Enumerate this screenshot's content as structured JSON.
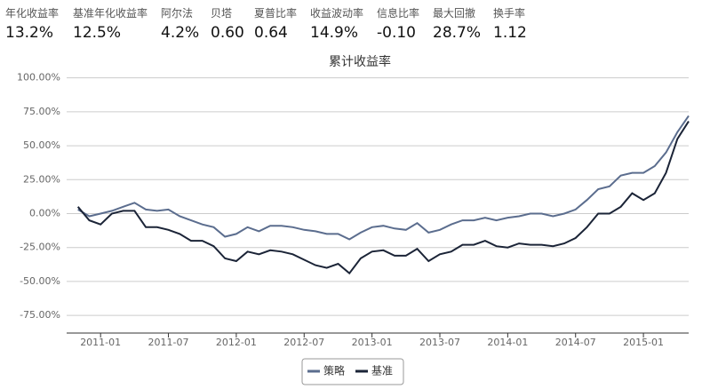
{
  "stats": [
    {
      "label": "年化收益率",
      "value": "13.2%"
    },
    {
      "label": "基准年化收益率",
      "value": "12.5%"
    },
    {
      "label": "阿尔法",
      "value": "4.2%"
    },
    {
      "label": "贝塔",
      "value": "0.60"
    },
    {
      "label": "夏普比率",
      "value": "0.64"
    },
    {
      "label": "收益波动率",
      "value": "14.9%"
    },
    {
      "label": "信息比率",
      "value": "-0.10"
    },
    {
      "label": "最大回撤",
      "value": "28.7%"
    },
    {
      "label": "换手率",
      "value": "1.12"
    }
  ],
  "chart_data": {
    "type": "line",
    "title": "累计收益率",
    "x": [
      "2010-11",
      "2010-12",
      "2011-01",
      "2011-02",
      "2011-03",
      "2011-04",
      "2011-05",
      "2011-06",
      "2011-07",
      "2011-08",
      "2011-09",
      "2011-10",
      "2011-11",
      "2011-12",
      "2012-01",
      "2012-02",
      "2012-03",
      "2012-04",
      "2012-05",
      "2012-06",
      "2012-07",
      "2012-08",
      "2012-09",
      "2012-10",
      "2012-11",
      "2012-12",
      "2013-01",
      "2013-02",
      "2013-03",
      "2013-04",
      "2013-05",
      "2013-06",
      "2013-07",
      "2013-08",
      "2013-09",
      "2013-10",
      "2013-11",
      "2013-12",
      "2014-01",
      "2014-02",
      "2014-03",
      "2014-04",
      "2014-05",
      "2014-06",
      "2014-07",
      "2014-08",
      "2014-09",
      "2014-10",
      "2014-11",
      "2014-12",
      "2015-01",
      "2015-02",
      "2015-03",
      "2015-04",
      "2015-05"
    ],
    "series": [
      {
        "name": "策略",
        "color": "#5b6d8e",
        "values": [
          3,
          -2,
          0,
          2,
          5,
          8,
          3,
          2,
          3,
          -2,
          -5,
          -8,
          -10,
          -17,
          -15,
          -10,
          -13,
          -9,
          -9,
          -10,
          -12,
          -13,
          -15,
          -15,
          -19,
          -14,
          -10,
          -9,
          -11,
          -12,
          -7,
          -14,
          -12,
          -8,
          -5,
          -5,
          -3,
          -5,
          -3,
          -2,
          0,
          0,
          -2,
          0,
          3,
          10,
          18,
          20,
          28,
          30,
          30,
          35,
          45,
          60,
          72
        ]
      },
      {
        "name": "基准",
        "color": "#1b2437",
        "values": [
          5,
          -5,
          -8,
          0,
          2,
          2,
          -10,
          -10,
          -12,
          -15,
          -20,
          -20,
          -24,
          -33,
          -35,
          -28,
          -30,
          -27,
          -28,
          -30,
          -34,
          -38,
          -40,
          -37,
          -44,
          -33,
          -28,
          -27,
          -31,
          -31,
          -26,
          -35,
          -30,
          -28,
          -23,
          -23,
          -20,
          -24,
          -25,
          -22,
          -23,
          -23,
          -24,
          -22,
          -18,
          -10,
          0,
          0,
          5,
          15,
          10,
          15,
          30,
          55,
          68
        ]
      }
    ],
    "xlim": [
      "2010-10",
      "2015-05"
    ],
    "xticks": [
      "2011-01",
      "2011-07",
      "2012-01",
      "2012-07",
      "2013-01",
      "2013-07",
      "2014-01",
      "2014-07",
      "2015-01"
    ],
    "ylim": [
      -88,
      105
    ],
    "yticks": [
      {
        "value": -75,
        "label": "-75.00%"
      },
      {
        "value": -50,
        "label": "-50.00%"
      },
      {
        "value": -25,
        "label": "-25.00%"
      },
      {
        "value": 0,
        "label": "0.00%"
      },
      {
        "value": 25,
        "label": "25.00%"
      },
      {
        "value": 50,
        "label": "50.00%"
      },
      {
        "value": 75,
        "label": "75.00%"
      },
      {
        "value": 100,
        "label": "100.00%"
      }
    ],
    "grid": true,
    "legend": "bottom"
  }
}
